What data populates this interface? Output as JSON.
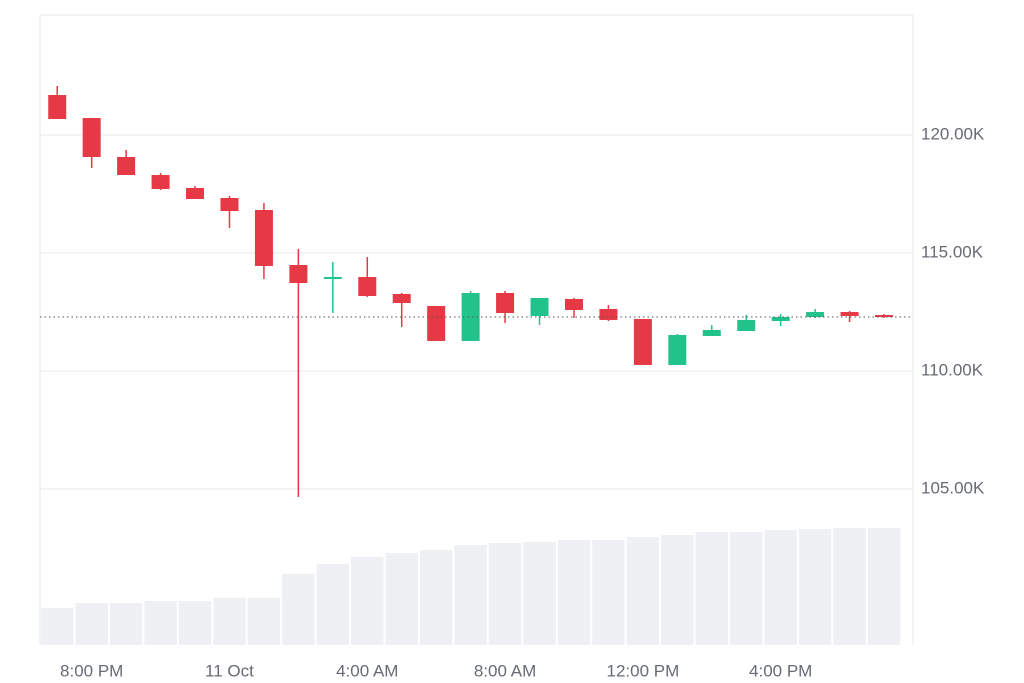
{
  "chart_data": {
    "type": "candlestick",
    "categories": [
      null,
      "8:00 PM",
      null,
      null,
      null,
      "11 Oct",
      null,
      null,
      null,
      "4:00 AM",
      null,
      null,
      null,
      "8:00 AM",
      null,
      null,
      null,
      "12:00 PM",
      null,
      null,
      null,
      "4:00 PM",
      null,
      null,
      null
    ],
    "open": [
      121695,
      120720,
      119068,
      118305,
      117754,
      117331,
      116822,
      114492,
      113899,
      113983,
      113263,
      112755,
      111272,
      113305,
      112331,
      113051,
      112628,
      112204,
      110255,
      111483,
      111695,
      112119,
      112288,
      112500,
      112373
    ],
    "high": [
      122076,
      120720,
      119364,
      118390,
      117839,
      117415,
      117119,
      115170,
      114619,
      114831,
      113305,
      112755,
      113390,
      113390,
      113094,
      113094,
      112797,
      112204,
      111568,
      111950,
      112373,
      112416,
      112628,
      112543,
      112416
    ],
    "low": [
      120678,
      118602,
      118305,
      117670,
      117288,
      116060,
      113899,
      104662,
      112458,
      113136,
      111865,
      111272,
      111272,
      112034,
      111950,
      112246,
      112119,
      110255,
      110255,
      111483,
      111695,
      111907,
      112246,
      112077,
      112246
    ],
    "close": [
      120678,
      119068,
      118305,
      117712,
      117288,
      116780,
      114450,
      113729,
      113983,
      113178,
      112882,
      111272,
      113305,
      112458,
      113094,
      112585,
      112162,
      110255,
      111526,
      111738,
      112162,
      112288,
      112500,
      112331,
      112288
    ],
    "volume": [
      37,
      42,
      42,
      44,
      44,
      47,
      47,
      71,
      81,
      88,
      92,
      95,
      100,
      102,
      103,
      105,
      105,
      108,
      110,
      113,
      113,
      115,
      116,
      117,
      117
    ],
    "volume_ylim": [
      0,
      630
    ],
    "ylim": [
      98390,
      125085
    ],
    "yticks": [
      {
        "value": 105000,
        "label": "105.00K"
      },
      {
        "value": 110000,
        "label": "110.00K"
      },
      {
        "value": 115000,
        "label": "115.00K"
      },
      {
        "value": 120000,
        "label": "120.00K"
      }
    ],
    "up_color": "#22c38b",
    "down_color": "#e63946",
    "volume_color": "#eef0f3",
    "grid": true
  }
}
